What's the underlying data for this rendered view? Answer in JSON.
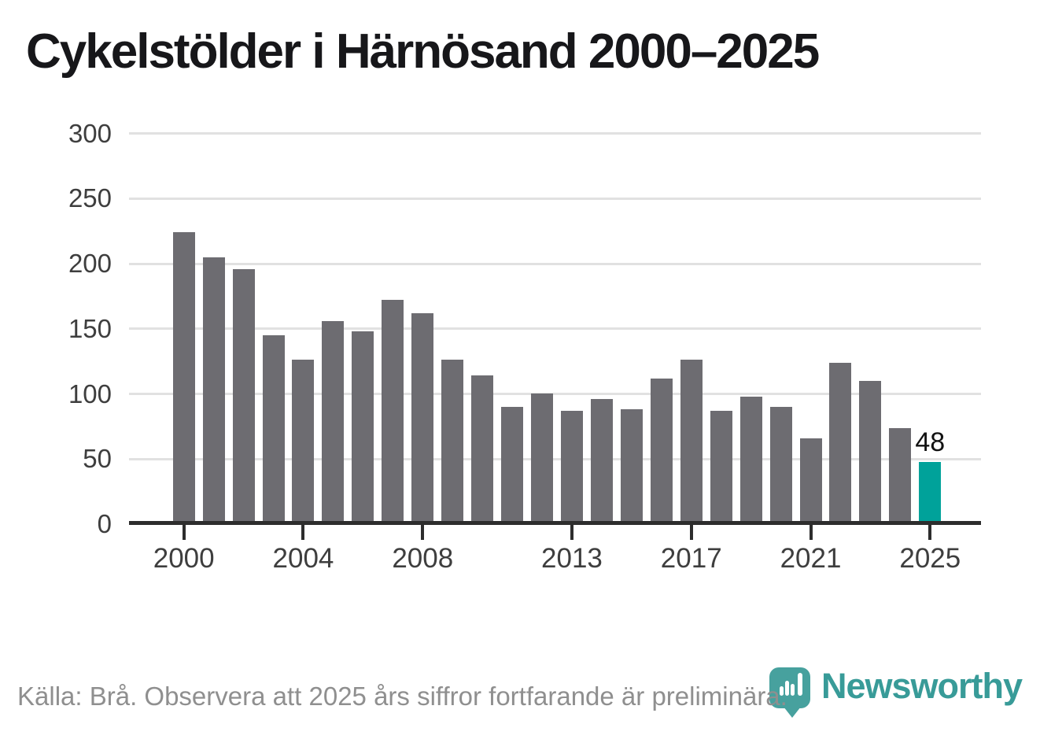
{
  "title": "Cykelstölder i Härnösand 2000–2025",
  "source_note": "Källa: Brå. Observera att 2025 års siffror fortfarande är preliminära.",
  "brand": {
    "name": "Newsworthy",
    "icon": "newsworthy-pin-barchart-icon"
  },
  "colors": {
    "bar": "#6D6C71",
    "highlight": "#00A29A",
    "brand_teal": "#389B98",
    "brand_icon_teal": "#47A19E",
    "grid": "#E1E1E1",
    "axis": "#2D2D2D",
    "tick_label": "#3E3E3E",
    "footer_text": "#8F8F8F",
    "title_text": "#17171A",
    "background": "#FFFFFF"
  },
  "chart_data": {
    "type": "bar",
    "title": "Cykelstölder i Härnösand 2000–2025",
    "x": [
      2000,
      2001,
      2002,
      2003,
      2004,
      2005,
      2006,
      2007,
      2008,
      2009,
      2010,
      2011,
      2012,
      2013,
      2014,
      2015,
      2016,
      2017,
      2018,
      2019,
      2020,
      2021,
      2022,
      2023,
      2024,
      2025
    ],
    "values": [
      224,
      205,
      196,
      145,
      126,
      156,
      148,
      172,
      162,
      126,
      114,
      90,
      100,
      87,
      96,
      88,
      112,
      126,
      87,
      98,
      90,
      66,
      124,
      110,
      74,
      48
    ],
    "highlight": {
      "year": 2025,
      "value": 48,
      "label": "48"
    },
    "yticks": [
      0,
      50,
      100,
      150,
      200,
      250,
      300
    ],
    "xticks": [
      2000,
      2004,
      2008,
      2013,
      2017,
      2021,
      2025
    ],
    "ylim": [
      0,
      300
    ],
    "grid": "horizontal",
    "legend": "none",
    "xlabel": "",
    "ylabel": ""
  }
}
